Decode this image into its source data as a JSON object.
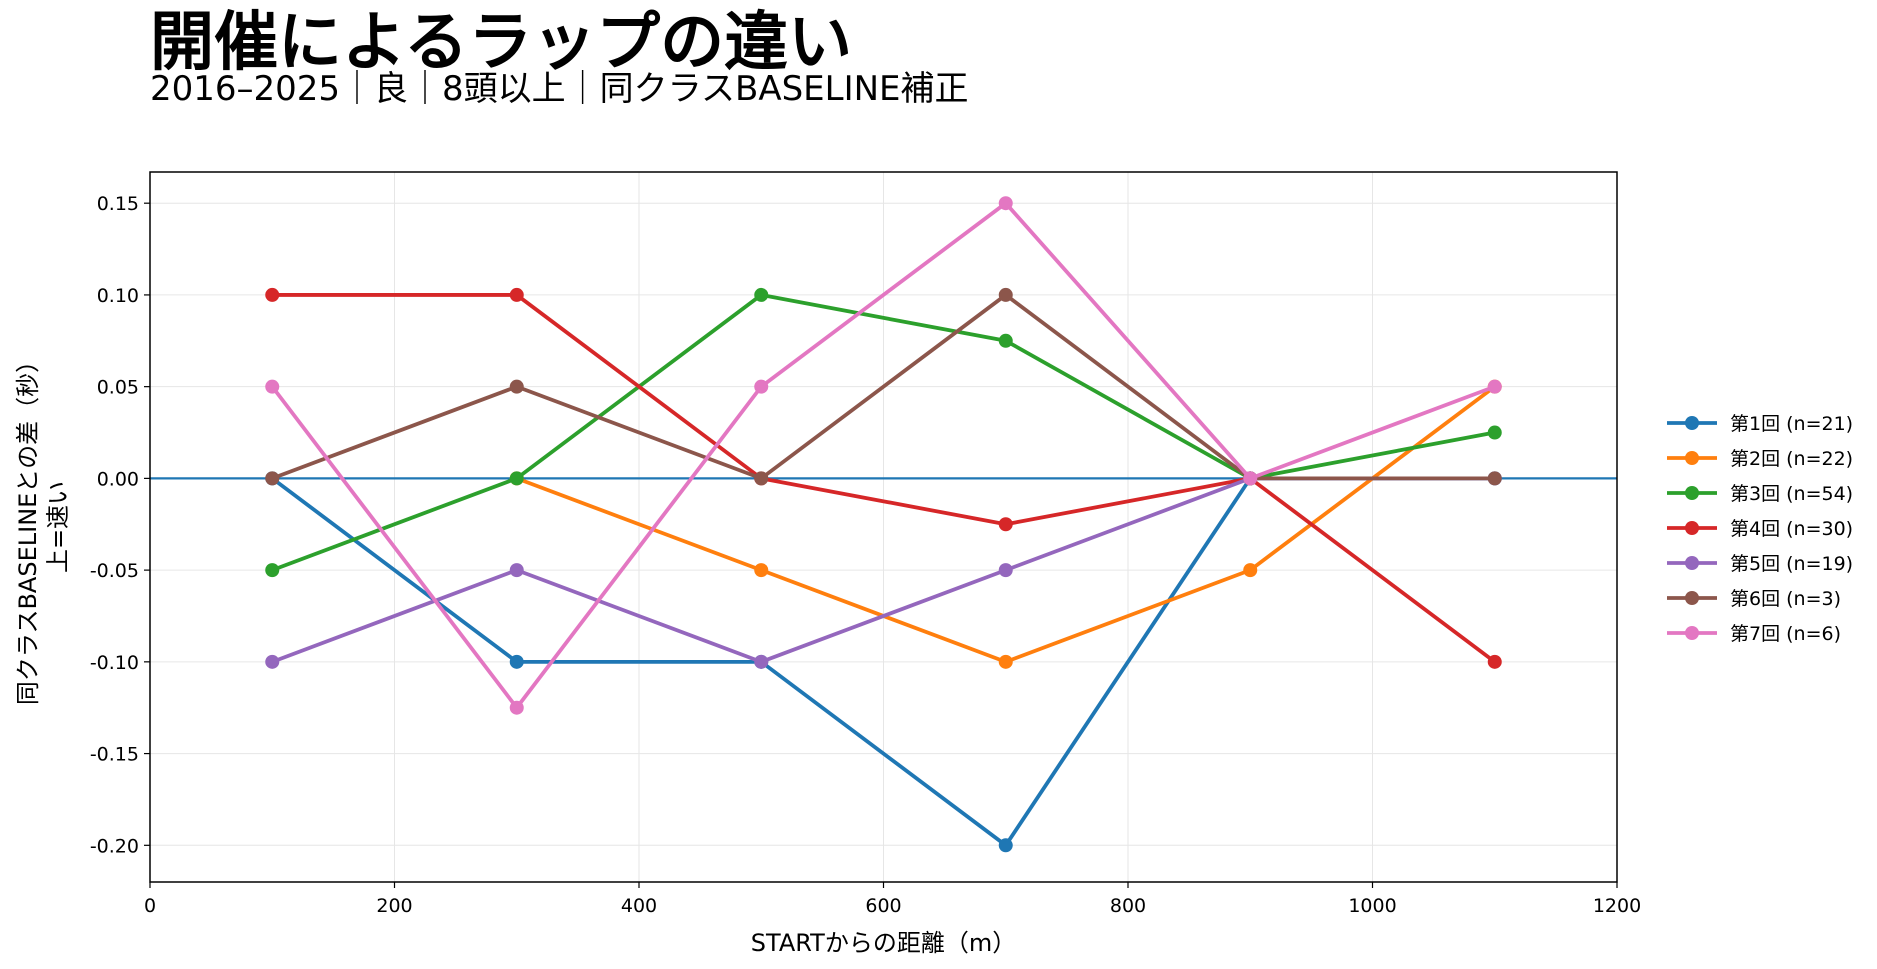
{
  "chart_data": {
    "type": "line",
    "title": "開催によるラップの違い",
    "subtitle": "2016–2025｜良｜8頭以上｜同クラスBASELINE補正",
    "xlabel": "STARTからの距離（m）",
    "ylabel_line1": "同クラスBASELINEとの差（秒）",
    "ylabel_line2": "上=速い",
    "xlim": [
      0,
      1200
    ],
    "ylim": [
      -0.22,
      0.167
    ],
    "xticks": [
      0,
      200,
      400,
      600,
      800,
      1000,
      1200
    ],
    "xtick_labels": [
      "0",
      "200",
      "400",
      "600",
      "800",
      "1000",
      "1200"
    ],
    "yticks": [
      0.15,
      0.1,
      0.05,
      0.0,
      -0.05,
      -0.1,
      -0.15,
      -0.2
    ],
    "ytick_labels": [
      "0.15",
      "0.10",
      "0.05",
      "0.00",
      "-0.05",
      "-0.10",
      "-0.15",
      "-0.20"
    ],
    "grid": true,
    "reference_line": {
      "y": 0,
      "color": "#1f77b4"
    },
    "legend_position": "right",
    "x": [
      100,
      300,
      500,
      700,
      900,
      1100
    ],
    "series": [
      {
        "name": "第1回 (n=21)",
        "color": "#1f77b4",
        "values": [
          0.0,
          -0.1,
          -0.1,
          -0.2,
          0.0,
          0.0
        ]
      },
      {
        "name": "第2回 (n=22)",
        "color": "#ff7f0e",
        "values": [
          null,
          0.0,
          -0.05,
          -0.1,
          -0.05,
          0.05
        ]
      },
      {
        "name": "第3回 (n=54)",
        "color": "#2ca02c",
        "values": [
          -0.05,
          0.0,
          0.1,
          0.075,
          0.0,
          0.025
        ]
      },
      {
        "name": "第4回 (n=30)",
        "color": "#d62728",
        "values": [
          0.1,
          0.1,
          0.0,
          -0.025,
          0.0,
          -0.1
        ]
      },
      {
        "name": "第5回 (n=19)",
        "color": "#9467bd",
        "values": [
          -0.1,
          -0.05,
          -0.1,
          -0.05,
          0.0,
          0.0
        ]
      },
      {
        "name": "第6回 (n=3)",
        "color": "#8c564b",
        "values": [
          0.0,
          0.05,
          0.0,
          0.1,
          0.0,
          0.0
        ]
      },
      {
        "name": "第7回 (n=6)",
        "color": "#e377c2",
        "values": [
          0.05,
          -0.125,
          0.05,
          0.15,
          0.0,
          0.05
        ]
      }
    ]
  }
}
